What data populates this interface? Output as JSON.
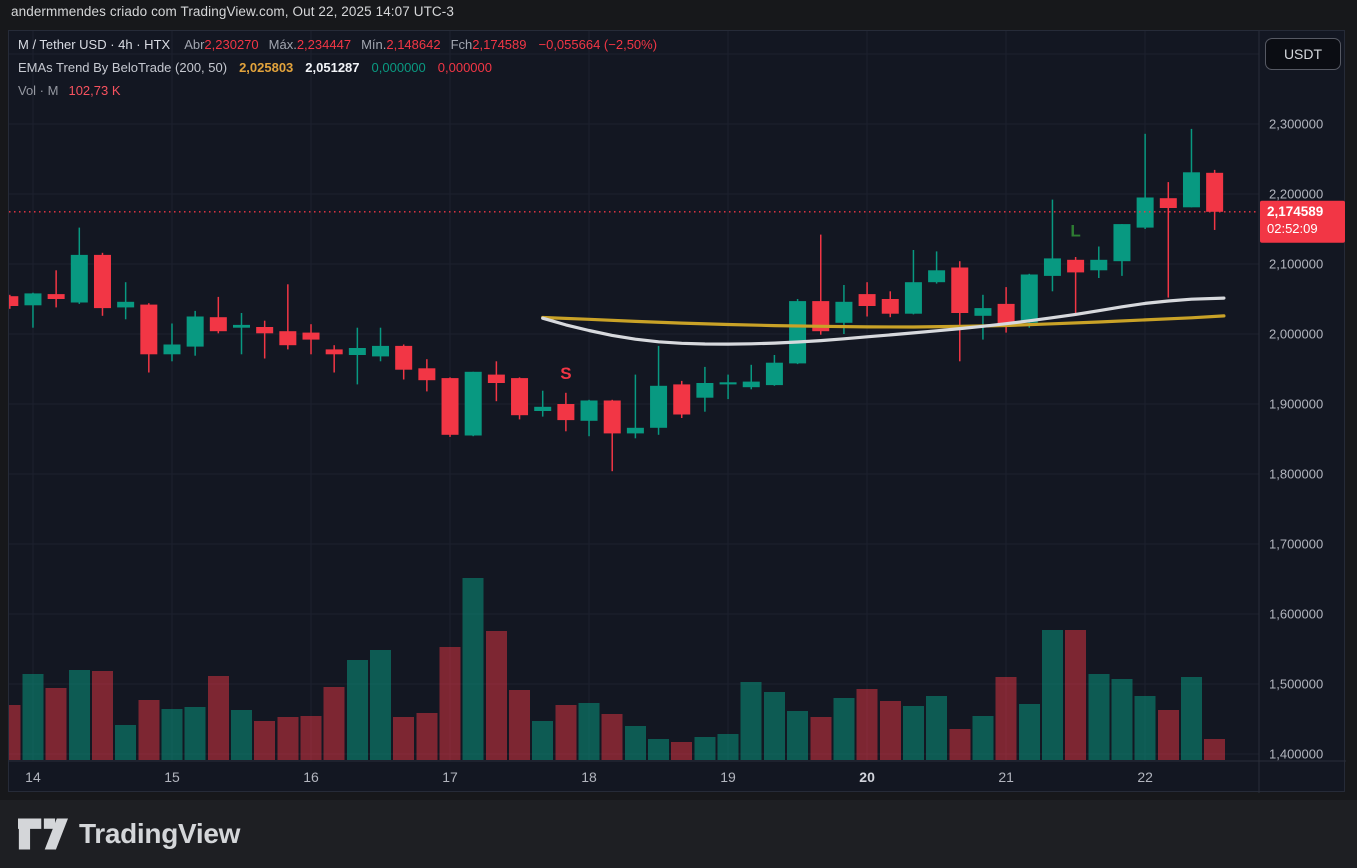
{
  "header": {
    "attribution": "andermmendes criado com TradingView.com, Out 22, 2025 14:07 UTC-3"
  },
  "legend": {
    "line1": {
      "symbol": "M / Tether USD · 4h · HTX",
      "open_label": "Abr",
      "open": "2,230270",
      "high_label": "Máx.",
      "high": "2,234447",
      "low_label": "Mín.",
      "low": "2,148642",
      "close_label": "Fch",
      "close": "2,174589",
      "change": "−0,055664 (−2,50%)"
    },
    "line2": {
      "name": "EMAs Trend By BeloTrade (200, 50)",
      "ema200_value": "2,025803",
      "ema50_value": "2,051287",
      "value3": "0,000000",
      "value4": "0,000000"
    },
    "line3": {
      "name": "Vol · M",
      "value": "102,73 K"
    }
  },
  "price_axis": {
    "currency_button": "USDT",
    "ticks": [
      {
        "price": 2.3,
        "label": "2,300000"
      },
      {
        "price": 2.2,
        "label": "2,200000"
      },
      {
        "price": 2.1,
        "label": "2,100000"
      },
      {
        "price": 2.0,
        "label": "2,000000"
      },
      {
        "price": 1.9,
        "label": "1,900000"
      },
      {
        "price": 1.8,
        "label": "1,800000"
      },
      {
        "price": 1.7,
        "label": "1,700000"
      },
      {
        "price": 1.6,
        "label": "1,600000"
      },
      {
        "price": 1.5,
        "label": "1,500000"
      },
      {
        "price": 1.4,
        "label": "1,400000"
      }
    ],
    "last_price_label": "2,174589",
    "countdown": "02:52:09"
  },
  "time_axis": {
    "items": [
      {
        "text": "14",
        "index": 1,
        "bold": false
      },
      {
        "text": "15",
        "index": 7,
        "bold": false
      },
      {
        "text": "16",
        "index": 13,
        "bold": false
      },
      {
        "text": "17",
        "index": 19,
        "bold": false
      },
      {
        "text": "18",
        "index": 25,
        "bold": false
      },
      {
        "text": "19",
        "index": 31,
        "bold": false
      },
      {
        "text": "20",
        "index": 37,
        "bold": true
      },
      {
        "text": "21",
        "index": 43,
        "bold": false
      },
      {
        "text": "22",
        "index": 49,
        "bold": false
      }
    ]
  },
  "footer": {
    "brand": "TradingView"
  },
  "colors": {
    "up": "#089981",
    "down": "#f23645",
    "vol_up": "rgba(8,153,129,0.52)",
    "vol_down": "rgba(242,54,69,0.48)",
    "ema_fast": "#d7d9dd",
    "ema_slow": "#c9a227",
    "grid": "#1d212e",
    "axis_text": "#b2b5be",
    "price_line": "#f23645",
    "marker_short": "#f23645",
    "marker_long": "#2e7d32"
  },
  "chart_data": {
    "type": "candlestick",
    "title": "M / Tether USD · 4h · HTX",
    "ylabel": "USDT",
    "ylim": [
      1.39,
      2.43
    ],
    "grid": true,
    "candles_format": [
      "open",
      "high",
      "low",
      "close",
      "volume_k"
    ],
    "candles": [
      [
        2.054,
        2.056,
        2.036,
        2.04,
        269
      ],
      [
        2.041,
        2.059,
        2.009,
        2.058,
        421
      ],
      [
        2.057,
        2.091,
        2.038,
        2.05,
        352
      ],
      [
        2.045,
        2.152,
        2.043,
        2.113,
        440
      ],
      [
        2.113,
        2.116,
        2.026,
        2.037,
        435
      ],
      [
        2.038,
        2.074,
        2.021,
        2.046,
        171
      ],
      [
        2.042,
        2.044,
        1.945,
        1.971,
        293
      ],
      [
        1.971,
        2.015,
        1.961,
        1.985,
        249
      ],
      [
        1.982,
        2.033,
        1.969,
        2.025,
        259
      ],
      [
        2.024,
        2.053,
        2.001,
        2.004,
        411
      ],
      [
        2.009,
        2.03,
        1.971,
        2.013,
        245
      ],
      [
        2.01,
        2.019,
        1.965,
        2.001,
        191
      ],
      [
        2.004,
        2.071,
        1.978,
        1.984,
        210
      ],
      [
        2.002,
        2.014,
        1.971,
        1.992,
        215
      ],
      [
        1.978,
        1.984,
        1.945,
        1.971,
        357
      ],
      [
        1.97,
        2.009,
        1.928,
        1.98,
        489
      ],
      [
        1.968,
        2.009,
        1.961,
        1.983,
        538
      ],
      [
        1.983,
        1.985,
        1.935,
        1.949,
        210
      ],
      [
        1.951,
        1.964,
        1.918,
        1.934,
        230
      ],
      [
        1.937,
        1.938,
        1.853,
        1.856,
        553
      ],
      [
        1.855,
        1.946,
        1.854,
        1.946,
        890
      ],
      [
        1.942,
        1.961,
        1.904,
        1.93,
        631
      ],
      [
        1.937,
        1.938,
        1.878,
        1.884,
        342
      ],
      [
        1.89,
        1.919,
        1.882,
        1.896,
        191
      ],
      [
        1.9,
        1.916,
        1.861,
        1.877,
        269
      ],
      [
        1.876,
        1.906,
        1.854,
        1.905,
        279
      ],
      [
        1.905,
        1.906,
        1.804,
        1.858,
        225
      ],
      [
        1.858,
        1.942,
        1.851,
        1.866,
        166
      ],
      [
        1.866,
        1.983,
        1.856,
        1.926,
        103
      ],
      [
        1.928,
        1.933,
        1.88,
        1.885,
        88
      ],
      [
        1.909,
        1.953,
        1.889,
        1.93,
        112
      ],
      [
        1.928,
        1.942,
        1.907,
        1.931,
        127
      ],
      [
        1.924,
        1.956,
        1.921,
        1.932,
        381
      ],
      [
        1.927,
        1.97,
        1.926,
        1.959,
        333
      ],
      [
        1.958,
        2.05,
        1.957,
        2.047,
        240
      ],
      [
        2.047,
        2.142,
        1.999,
        2.004,
        210
      ],
      [
        2.016,
        2.07,
        2.0,
        2.046,
        303
      ],
      [
        2.057,
        2.074,
        2.025,
        2.04,
        347
      ],
      [
        2.05,
        2.061,
        2.024,
        2.029,
        289
      ],
      [
        2.029,
        2.12,
        2.028,
        2.074,
        264
      ],
      [
        2.074,
        2.118,
        2.072,
        2.091,
        313
      ],
      [
        2.095,
        2.104,
        1.961,
        2.03,
        152
      ],
      [
        2.026,
        2.056,
        1.992,
        2.037,
        215
      ],
      [
        2.043,
        2.067,
        2.002,
        2.015,
        406
      ],
      [
        2.016,
        2.086,
        2.009,
        2.085,
        274
      ],
      [
        2.083,
        2.192,
        2.061,
        2.108,
        636
      ],
      [
        2.106,
        2.11,
        2.03,
        2.088,
        636
      ],
      [
        2.091,
        2.125,
        2.08,
        2.106,
        421
      ],
      [
        2.104,
        2.157,
        2.083,
        2.157,
        396
      ],
      [
        2.152,
        2.286,
        2.15,
        2.195,
        313
      ],
      [
        2.194,
        2.217,
        2.052,
        2.18,
        245
      ],
      [
        2.181,
        2.293,
        2.181,
        2.231,
        406
      ],
      [
        2.23027,
        2.234447,
        2.148642,
        2.174589,
        102.73
      ]
    ],
    "day_start_indices": [
      1,
      7,
      13,
      19,
      25,
      31,
      37,
      43,
      49
    ],
    "day_labels": [
      "14",
      "15",
      "16",
      "17",
      "18",
      "19",
      "20",
      "21",
      "22"
    ],
    "emas": {
      "ema200": [
        [
          23,
          2.0235
        ],
        [
          25,
          2.021
        ],
        [
          27,
          2.018
        ],
        [
          29,
          2.0155
        ],
        [
          31,
          2.0135
        ],
        [
          33,
          2.012
        ],
        [
          35,
          2.011
        ],
        [
          37,
          2.0102
        ],
        [
          39,
          2.01
        ],
        [
          41,
          2.0108
        ],
        [
          43,
          2.0122
        ],
        [
          45,
          2.0145
        ],
        [
          47,
          2.0172
        ],
        [
          49,
          2.0202
        ],
        [
          51,
          2.0232
        ],
        [
          52.4,
          2.025803
        ]
      ],
      "ema50": [
        [
          23,
          2.0225
        ],
        [
          24,
          2.013
        ],
        [
          25,
          2.005
        ],
        [
          26,
          1.998
        ],
        [
          27,
          1.9925
        ],
        [
          28,
          1.9888
        ],
        [
          29,
          1.9867
        ],
        [
          30,
          1.9857
        ],
        [
          31,
          1.9855
        ],
        [
          32,
          1.986
        ],
        [
          33,
          1.987
        ],
        [
          34,
          1.9885
        ],
        [
          35,
          1.9905
        ],
        [
          36,
          1.9932
        ],
        [
          37,
          1.996
        ],
        [
          38,
          1.9987
        ],
        [
          39,
          2.0015
        ],
        [
          40,
          2.0045
        ],
        [
          41,
          2.0077
        ],
        [
          42,
          2.011
        ],
        [
          43,
          2.0147
        ],
        [
          44,
          2.0188
        ],
        [
          45,
          2.0233
        ],
        [
          46,
          2.028
        ],
        [
          47,
          2.0333
        ],
        [
          48,
          2.0388
        ],
        [
          49,
          2.0437
        ],
        [
          50,
          2.0472
        ],
        [
          51,
          2.0497
        ],
        [
          52.4,
          2.051287
        ]
      ]
    },
    "markers": [
      {
        "label": "S",
        "index": 24,
        "price": 1.936,
        "color": "#f23645"
      },
      {
        "label": "L",
        "index": 46,
        "price": 2.139,
        "color": "#2e7d32"
      }
    ],
    "last_price": 2.174589,
    "volume_legend": "102,73 K"
  }
}
